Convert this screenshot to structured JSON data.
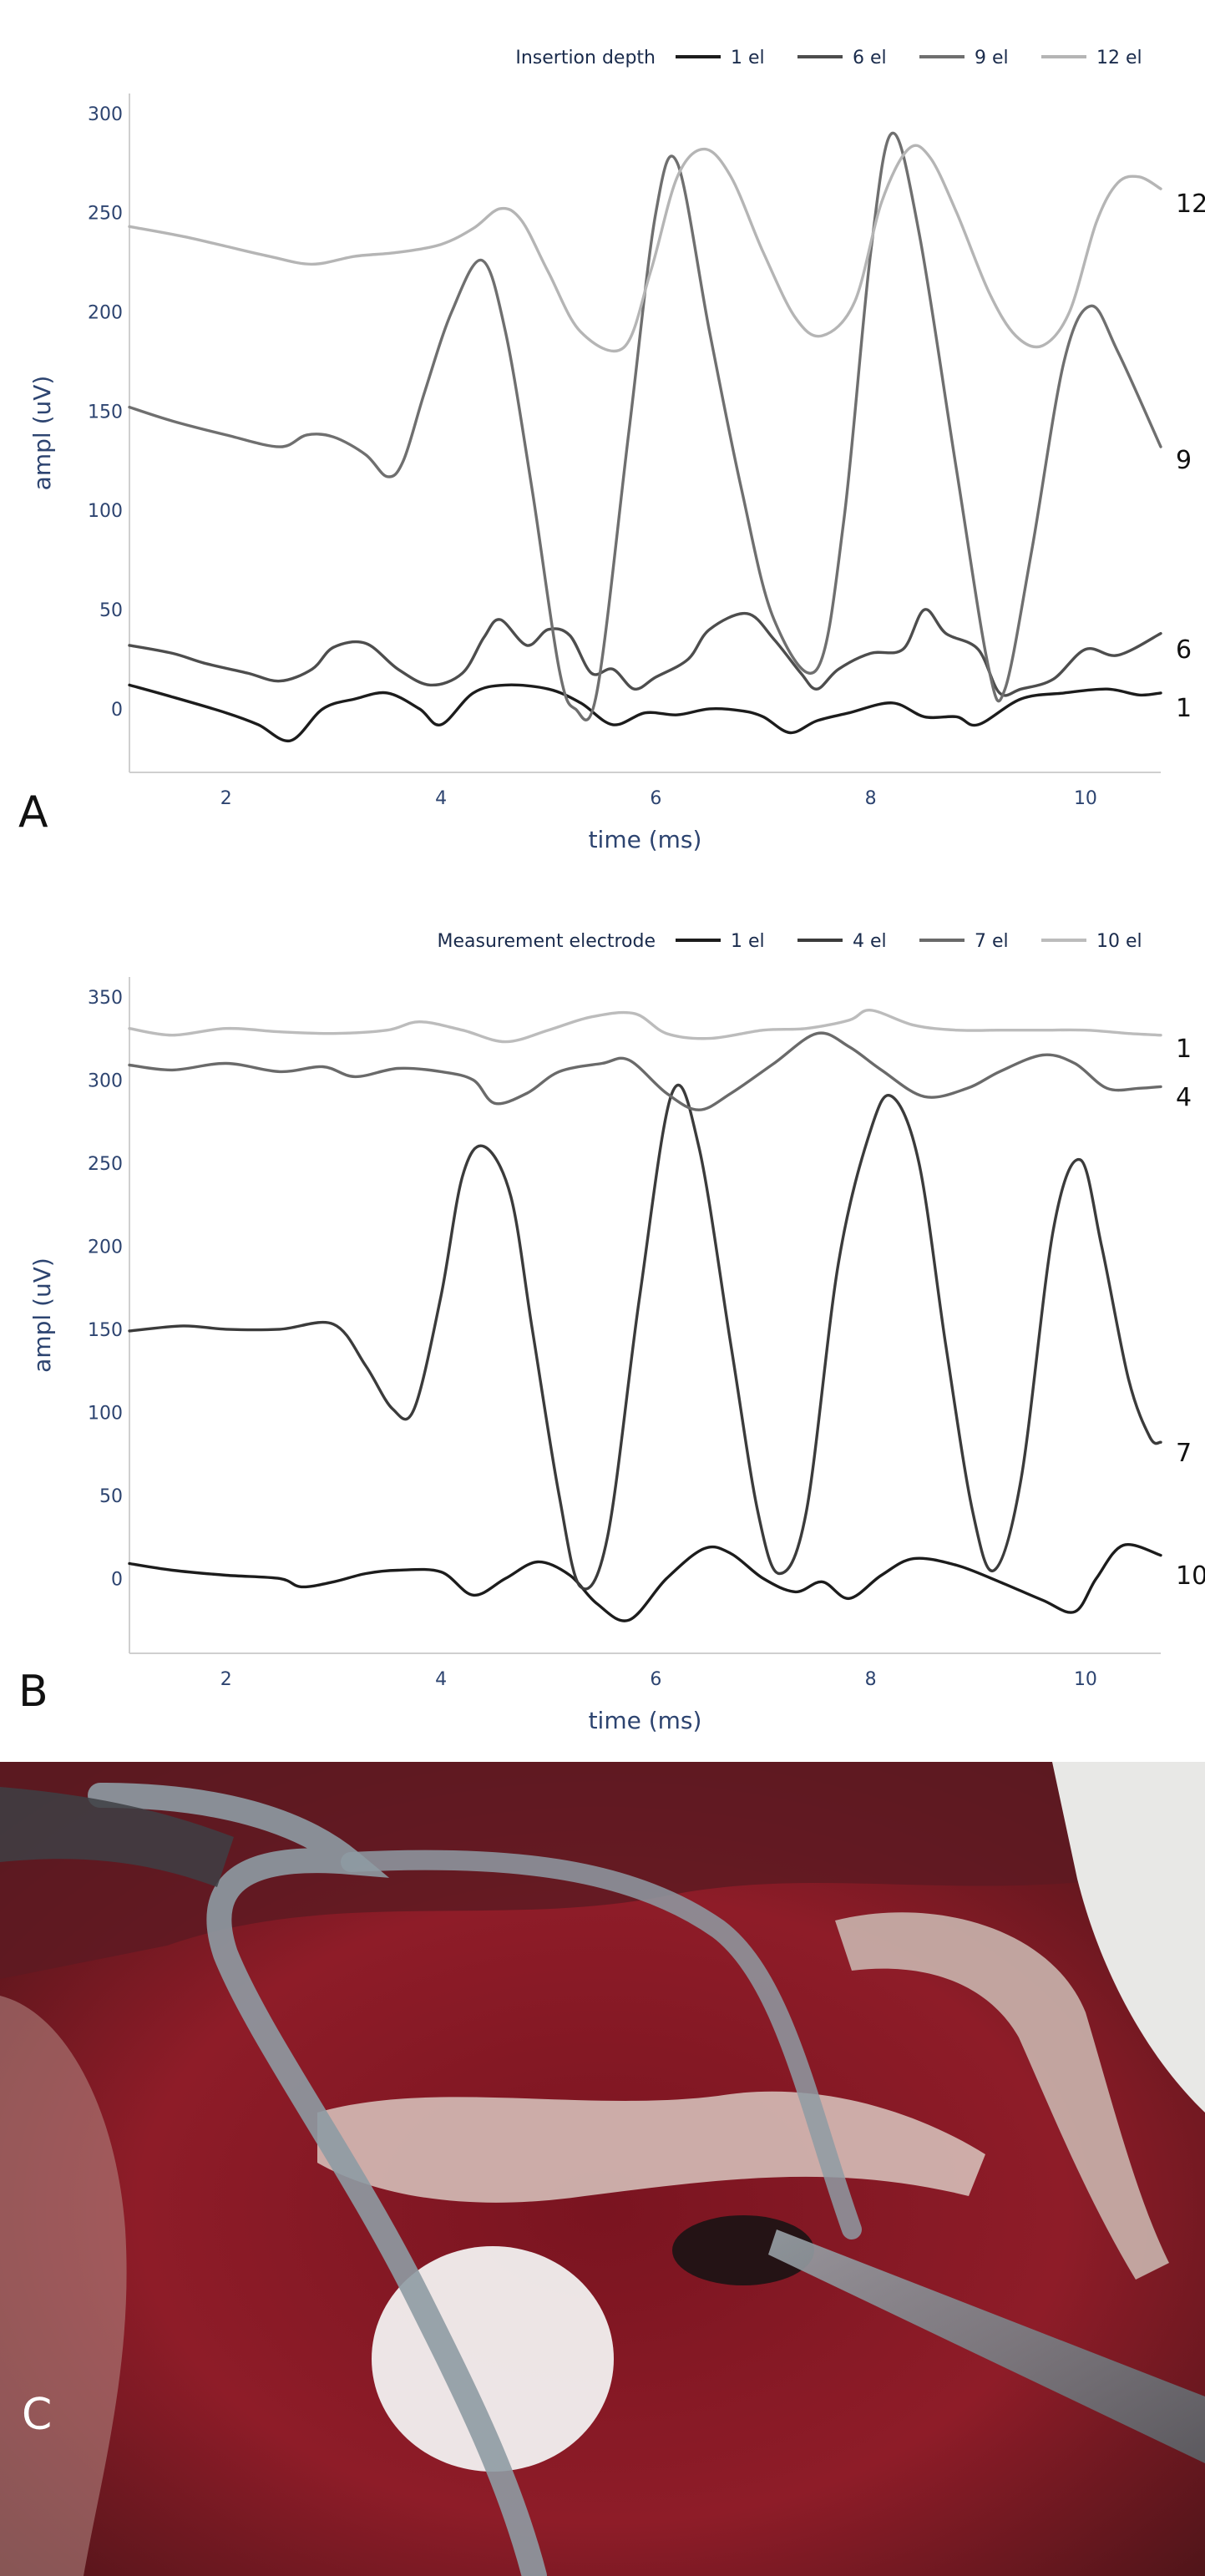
{
  "panels": [
    "A",
    "B",
    "C"
  ],
  "chart_data": [
    {
      "type": "line",
      "panel": "A",
      "legend_title": "Insertion depth",
      "legend_position": "top-right",
      "xlabel": "time (ms)",
      "ylabel": "ampl (uV)",
      "xlim": [
        1.1,
        10.7
      ],
      "ylim": [
        -32,
        310
      ],
      "xticks": [
        2,
        4,
        6,
        8,
        10
      ],
      "yticks": [
        0,
        50,
        100,
        150,
        200,
        250,
        300
      ],
      "series": [
        {
          "name": "1 el",
          "end_label": "1",
          "color": "#1c1c1c",
          "x": [
            1.1,
            1.5,
            2.0,
            2.3,
            2.6,
            2.9,
            3.2,
            3.5,
            3.8,
            4.0,
            4.3,
            4.6,
            5.0,
            5.3,
            5.6,
            5.9,
            6.2,
            6.5,
            6.8,
            7.0,
            7.25,
            7.5,
            7.8,
            8.2,
            8.5,
            8.8,
            9.0,
            9.4,
            9.8,
            10.2,
            10.5,
            10.7
          ],
          "y": [
            12,
            6,
            -2,
            -8,
            -16,
            0,
            5,
            8,
            0,
            -8,
            8,
            12,
            10,
            3,
            -8,
            -2,
            -3,
            0,
            -1,
            -4,
            -12,
            -6,
            -2,
            3,
            -4,
            -4,
            -8,
            5,
            8,
            10,
            7,
            8
          ]
        },
        {
          "name": "6 el",
          "end_label": "6",
          "color": "#4d4d4d",
          "x": [
            1.1,
            1.5,
            1.8,
            2.2,
            2.5,
            2.8,
            3.0,
            3.3,
            3.6,
            3.9,
            4.2,
            4.4,
            4.55,
            4.8,
            5.0,
            5.2,
            5.4,
            5.6,
            5.8,
            6.0,
            6.3,
            6.5,
            6.85,
            7.1,
            7.35,
            7.5,
            7.7,
            8.0,
            8.3,
            8.5,
            8.7,
            9.0,
            9.2,
            9.4,
            9.7,
            10.0,
            10.3,
            10.7
          ],
          "y": [
            32,
            28,
            23,
            18,
            14,
            20,
            31,
            33,
            20,
            12,
            18,
            36,
            45,
            32,
            40,
            37,
            18,
            20,
            10,
            16,
            25,
            40,
            48,
            35,
            18,
            10,
            20,
            28,
            30,
            50,
            38,
            30,
            8,
            10,
            15,
            30,
            27,
            38
          ]
        },
        {
          "name": "9 el",
          "end_label": "9",
          "color": "#6f6f6f",
          "x": [
            1.1,
            1.5,
            2.0,
            2.5,
            2.75,
            3.0,
            3.3,
            3.5,
            3.65,
            3.85,
            4.1,
            4.38,
            4.6,
            4.85,
            5.1,
            5.25,
            5.45,
            5.75,
            6.0,
            6.2,
            6.5,
            6.8,
            7.1,
            7.5,
            7.75,
            8.0,
            8.2,
            8.45,
            8.8,
            9.1,
            9.25,
            9.5,
            9.8,
            10.05,
            10.3,
            10.7
          ],
          "y": [
            152,
            145,
            138,
            132,
            138,
            137,
            128,
            117,
            125,
            160,
            200,
            226,
            190,
            110,
            20,
            0,
            8,
            140,
            250,
            275,
            190,
            110,
            45,
            20,
            95,
            230,
            290,
            240,
            120,
            20,
            10,
            80,
            175,
            203,
            180,
            132
          ]
        },
        {
          "name": "12 el",
          "end_label": "12",
          "color": "#b5b5b5",
          "x": [
            1.1,
            1.6,
            2.0,
            2.4,
            2.8,
            3.2,
            3.6,
            4.0,
            4.3,
            4.55,
            4.75,
            5.0,
            5.3,
            5.7,
            5.95,
            6.2,
            6.45,
            6.7,
            7.0,
            7.3,
            7.55,
            7.85,
            8.1,
            8.35,
            8.55,
            8.8,
            9.1,
            9.35,
            9.6,
            9.85,
            10.1,
            10.3,
            10.5,
            10.7
          ],
          "y": [
            243,
            238,
            233,
            228,
            224,
            228,
            230,
            234,
            242,
            252,
            246,
            220,
            190,
            182,
            220,
            268,
            282,
            268,
            230,
            197,
            188,
            205,
            255,
            282,
            278,
            250,
            210,
            188,
            183,
            200,
            245,
            265,
            268,
            262
          ]
        }
      ]
    },
    {
      "type": "line",
      "panel": "B",
      "legend_title": "Measurement electrode",
      "legend_position": "top-right",
      "xlabel": "time (ms)",
      "ylabel": "ampl (uV)",
      "xlim": [
        1.1,
        10.7
      ],
      "ylim": [
        -45,
        362
      ],
      "xticks": [
        2,
        4,
        6,
        8,
        10
      ],
      "yticks": [
        0,
        50,
        100,
        150,
        200,
        250,
        300,
        350
      ],
      "series": [
        {
          "name": "1 el",
          "end_label": "10",
          "color": "#1c1c1c",
          "x": [
            1.1,
            1.5,
            2.0,
            2.5,
            2.7,
            3.0,
            3.3,
            3.6,
            4.0,
            4.3,
            4.6,
            4.9,
            5.2,
            5.45,
            5.75,
            6.1,
            6.45,
            6.7,
            7.0,
            7.3,
            7.55,
            7.8,
            8.1,
            8.4,
            8.8,
            9.2,
            9.6,
            9.9,
            10.1,
            10.35,
            10.7
          ],
          "y": [
            9,
            5,
            2,
            0,
            -5,
            -2,
            3,
            5,
            4,
            -10,
            0,
            10,
            2,
            -15,
            -25,
            0,
            18,
            15,
            0,
            -8,
            -2,
            -12,
            2,
            12,
            8,
            -2,
            -13,
            -20,
            0,
            20,
            14
          ]
        },
        {
          "name": "4 el",
          "end_label": "7",
          "color": "#3b3b3b",
          "x": [
            1.1,
            1.6,
            2.0,
            2.5,
            3.0,
            3.3,
            3.55,
            3.75,
            4.0,
            4.2,
            4.4,
            4.65,
            4.85,
            5.1,
            5.3,
            5.55,
            5.85,
            6.15,
            6.4,
            6.7,
            6.95,
            7.15,
            7.4,
            7.7,
            8.0,
            8.2,
            8.45,
            8.7,
            8.95,
            9.15,
            9.4,
            9.7,
            9.95,
            10.15,
            10.4,
            10.6,
            10.7
          ],
          "y": [
            149,
            152,
            150,
            150,
            153,
            128,
            102,
            102,
            170,
            242,
            260,
            230,
            150,
            50,
            -5,
            25,
            170,
            292,
            260,
            140,
            40,
            3,
            40,
            190,
            270,
            290,
            250,
            140,
            40,
            5,
            60,
            210,
            252,
            200,
            120,
            85,
            82
          ]
        },
        {
          "name": "7 el",
          "end_label": "4",
          "color": "#6a6a6a",
          "x": [
            1.1,
            1.5,
            2.0,
            2.5,
            2.9,
            3.2,
            3.6,
            4.0,
            4.3,
            4.5,
            4.8,
            5.1,
            5.5,
            5.75,
            6.1,
            6.4,
            6.7,
            7.1,
            7.5,
            7.8,
            8.1,
            8.5,
            8.9,
            9.2,
            9.6,
            9.9,
            10.2,
            10.5,
            10.7
          ],
          "y": [
            309,
            306,
            310,
            305,
            308,
            302,
            307,
            305,
            300,
            286,
            292,
            305,
            310,
            312,
            292,
            282,
            292,
            310,
            328,
            320,
            306,
            290,
            295,
            305,
            315,
            310,
            295,
            295,
            296
          ]
        },
        {
          "name": "10 el",
          "end_label": "1",
          "color": "#bcbcbc",
          "x": [
            1.1,
            1.5,
            2.0,
            2.5,
            3.0,
            3.5,
            3.8,
            4.2,
            4.6,
            5.0,
            5.4,
            5.8,
            6.1,
            6.5,
            7.0,
            7.4,
            7.8,
            8.0,
            8.4,
            8.8,
            9.2,
            9.6,
            10.0,
            10.4,
            10.7
          ],
          "y": [
            331,
            327,
            331,
            329,
            328,
            330,
            335,
            330,
            323,
            330,
            338,
            340,
            328,
            325,
            330,
            331,
            336,
            342,
            333,
            330,
            330,
            330,
            330,
            328,
            327
          ]
        }
      ]
    }
  ],
  "photo": {
    "caption": "C"
  }
}
